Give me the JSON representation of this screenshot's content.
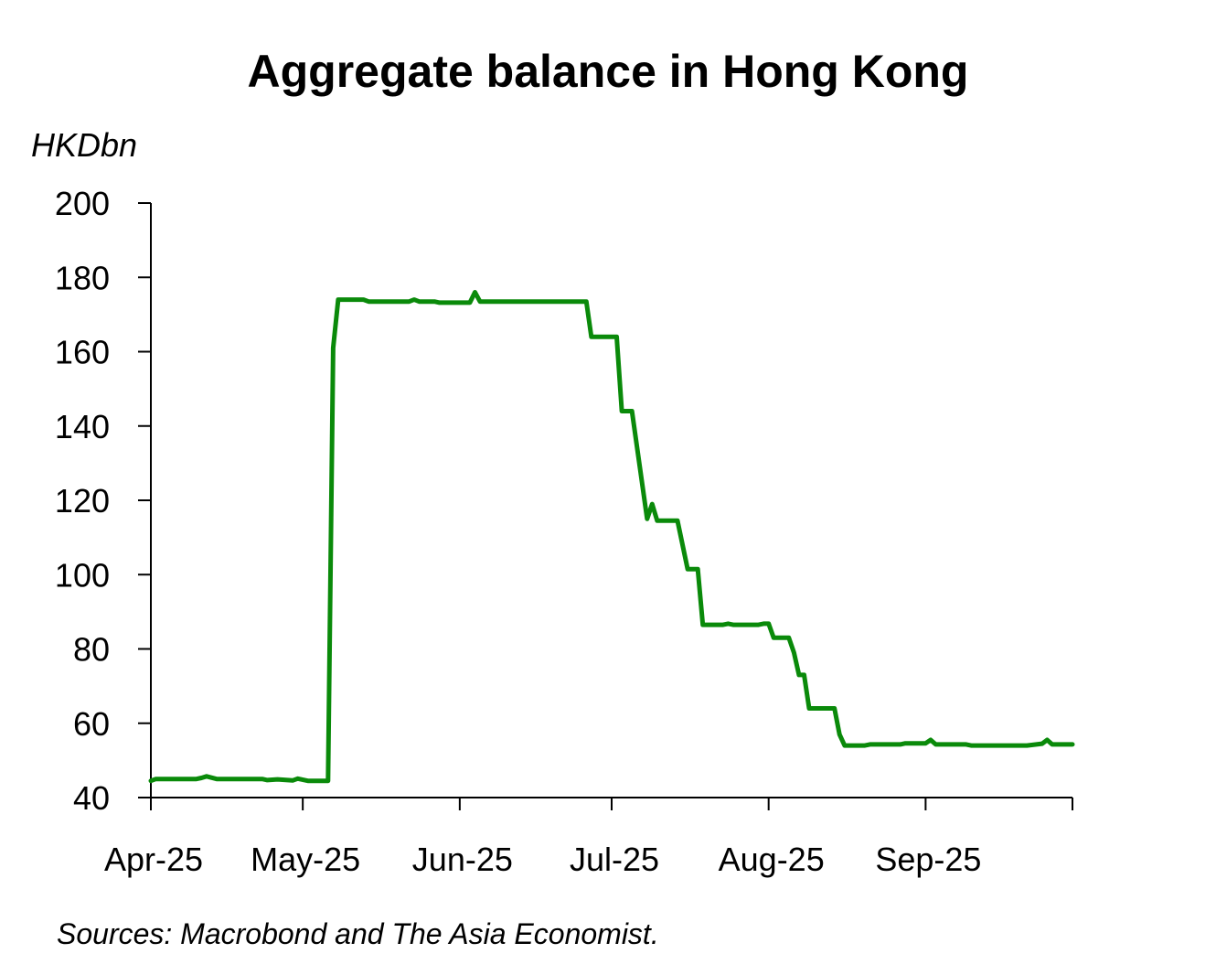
{
  "chart_data": {
    "type": "line",
    "title": "Aggregate balance in Hong Kong",
    "ylabel": "HKDbn",
    "ylim": [
      40,
      200
    ],
    "yticks": [
      40,
      60,
      80,
      100,
      120,
      140,
      160,
      180,
      200
    ],
    "x_range": [
      "2025-04-01",
      "2025-09-30"
    ],
    "x_tick_labels": [
      {
        "date": "2025-04-01",
        "label": "Apr-25"
      },
      {
        "date": "2025-05-01",
        "label": "May-25"
      },
      {
        "date": "2025-06-01",
        "label": "Jun-25"
      },
      {
        "date": "2025-07-01",
        "label": "Jul-25"
      },
      {
        "date": "2025-08-01",
        "label": "Aug-25"
      },
      {
        "date": "2025-09-01",
        "label": "Sep-25"
      }
    ],
    "grid": false,
    "legend": "none",
    "series": [
      {
        "color": "#0a8a0a",
        "points": [
          [
            "2025-04-01",
            44.5
          ],
          [
            "2025-04-02",
            45
          ],
          [
            "2025-04-10",
            45
          ],
          [
            "2025-04-11",
            45.3
          ],
          [
            "2025-04-12",
            45.7
          ],
          [
            "2025-04-14",
            45
          ],
          [
            "2025-04-23",
            45
          ],
          [
            "2025-04-24",
            44.7
          ],
          [
            "2025-04-26",
            44.9
          ],
          [
            "2025-04-29",
            44.6
          ],
          [
            "2025-04-30",
            45.1
          ],
          [
            "2025-05-02",
            44.5
          ],
          [
            "2025-05-06",
            44.5
          ],
          [
            "2025-05-07",
            161
          ],
          [
            "2025-05-08",
            174
          ],
          [
            "2025-05-13",
            174
          ],
          [
            "2025-05-14",
            173.5
          ],
          [
            "2025-05-22",
            173.5
          ],
          [
            "2025-05-23",
            174
          ],
          [
            "2025-05-24",
            173.5
          ],
          [
            "2025-05-27",
            173.5
          ],
          [
            "2025-05-28",
            173.2
          ],
          [
            "2025-06-03",
            173.2
          ],
          [
            "2025-06-04",
            176
          ],
          [
            "2025-06-05",
            173.5
          ],
          [
            "2025-06-26",
            173.5
          ],
          [
            "2025-06-27",
            164
          ],
          [
            "2025-07-02",
            164
          ],
          [
            "2025-07-03",
            144
          ],
          [
            "2025-07-05",
            144
          ],
          [
            "2025-07-08",
            115
          ],
          [
            "2025-07-09",
            119
          ],
          [
            "2025-07-10",
            114.5
          ],
          [
            "2025-07-14",
            114.5
          ],
          [
            "2025-07-16",
            101.5
          ],
          [
            "2025-07-18",
            101.5
          ],
          [
            "2025-07-19",
            86.5
          ],
          [
            "2025-07-23",
            86.5
          ],
          [
            "2025-07-24",
            86.8
          ],
          [
            "2025-07-25",
            86.5
          ],
          [
            "2025-07-30",
            86.5
          ],
          [
            "2025-07-31",
            86.8
          ],
          [
            "2025-08-01",
            86.8
          ],
          [
            "2025-08-02",
            83
          ],
          [
            "2025-08-05",
            83
          ],
          [
            "2025-08-06",
            79
          ],
          [
            "2025-08-07",
            73
          ],
          [
            "2025-08-08",
            73
          ],
          [
            "2025-08-09",
            64
          ],
          [
            "2025-08-14",
            64
          ],
          [
            "2025-08-15",
            57
          ],
          [
            "2025-08-16",
            54
          ],
          [
            "2025-08-20",
            54
          ],
          [
            "2025-08-21",
            54.3
          ],
          [
            "2025-08-27",
            54.3
          ],
          [
            "2025-08-28",
            54.6
          ],
          [
            "2025-09-01",
            54.6
          ],
          [
            "2025-09-02",
            55.5
          ],
          [
            "2025-09-03",
            54.3
          ],
          [
            "2025-09-09",
            54.3
          ],
          [
            "2025-09-10",
            54
          ],
          [
            "2025-09-21",
            54
          ],
          [
            "2025-09-24",
            54.5
          ],
          [
            "2025-09-25",
            55.5
          ],
          [
            "2025-09-26",
            54.3
          ],
          [
            "2025-09-30",
            54.3
          ]
        ]
      }
    ],
    "source_note": "Sources: Macrobond and The Asia Economist."
  }
}
